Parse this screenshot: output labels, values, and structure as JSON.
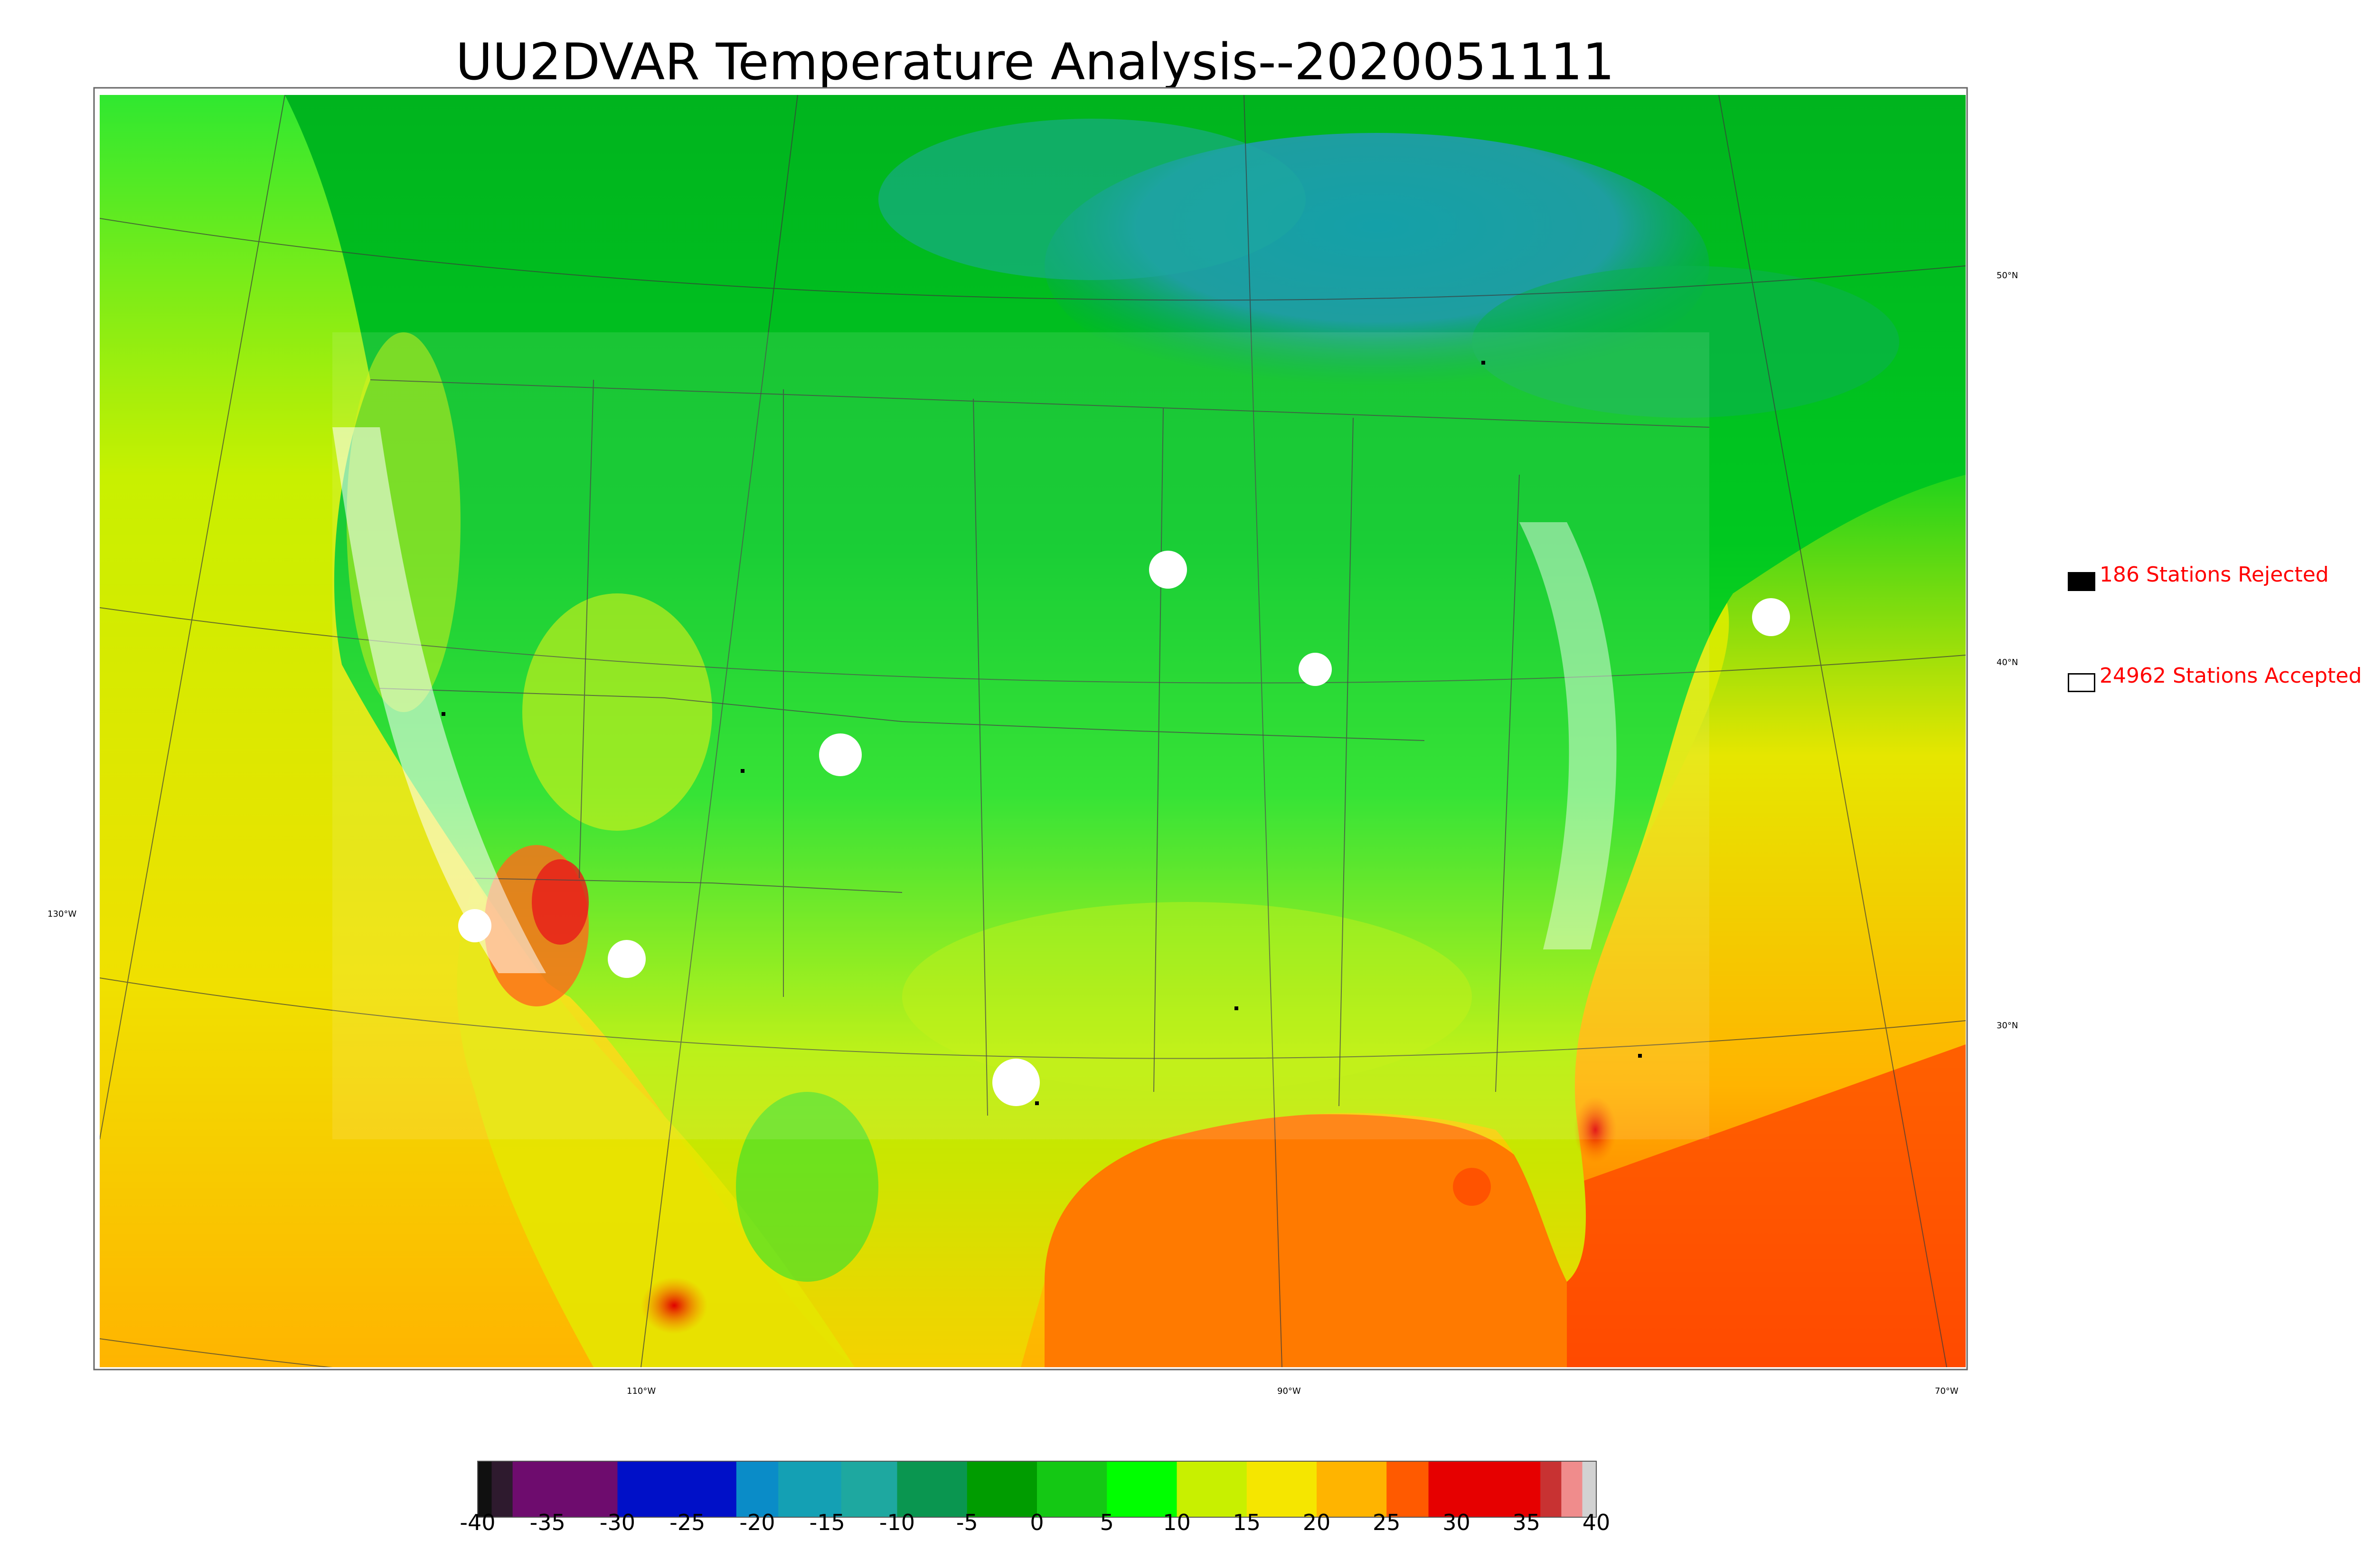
{
  "title": "UU2DVAR Temperature Analysis--2020051111",
  "map": {
    "longitude_labels": [
      "130°W",
      "110°W",
      "90°W",
      "70°W"
    ],
    "latitude_labels": [
      "50°N",
      "40°N",
      "30°N"
    ]
  },
  "legend": {
    "rejected": {
      "label": "186 Stations Rejected",
      "count": 186,
      "marker_color": "#000000"
    },
    "accepted": {
      "label": "24962 Stations Accepted",
      "count": 24962,
      "marker_color": "#ffffff"
    },
    "text_color": "#ff0000"
  },
  "colorbar": {
    "range": [
      -40,
      40
    ],
    "tick_labels": [
      "-40",
      "-35",
      "-30",
      "-25",
      "-20",
      "-15",
      "-10",
      "-5",
      "0",
      "5",
      "10",
      "15",
      "20",
      "25",
      "30",
      "35",
      "40"
    ],
    "bands": [
      {
        "from": -40,
        "to": -39,
        "color": "#101010"
      },
      {
        "from": -39,
        "to": -37.5,
        "color": "#2e1a2e"
      },
      {
        "from": -37.5,
        "to": -30,
        "color": "#6e0c6e"
      },
      {
        "from": -30,
        "to": -21.5,
        "color": "#0010c8"
      },
      {
        "from": -21.5,
        "to": -18.5,
        "color": "#0a8cc8"
      },
      {
        "from": -18.5,
        "to": -14,
        "color": "#14a0b4"
      },
      {
        "from": -14,
        "to": -10,
        "color": "#1ea8a0"
      },
      {
        "from": -10,
        "to": -5,
        "color": "#0a9650"
      },
      {
        "from": -5,
        "to": 0,
        "color": "#009c00"
      },
      {
        "from": 0,
        "to": 5,
        "color": "#14c814"
      },
      {
        "from": 5,
        "to": 10,
        "color": "#00ff00"
      },
      {
        "from": 10,
        "to": 15,
        "color": "#c8f000"
      },
      {
        "from": 15,
        "to": 20,
        "color": "#f5e600"
      },
      {
        "from": 20,
        "to": 25,
        "color": "#ffb400"
      },
      {
        "from": 25,
        "to": 28,
        "color": "#ff5a00"
      },
      {
        "from": 28,
        "to": 36,
        "color": "#e60000"
      },
      {
        "from": 36,
        "to": 37.5,
        "color": "#c83232"
      },
      {
        "from": 37.5,
        "to": 39,
        "color": "#f08c8c"
      },
      {
        "from": 39,
        "to": 40,
        "color": "#d2d2d2"
      }
    ]
  }
}
